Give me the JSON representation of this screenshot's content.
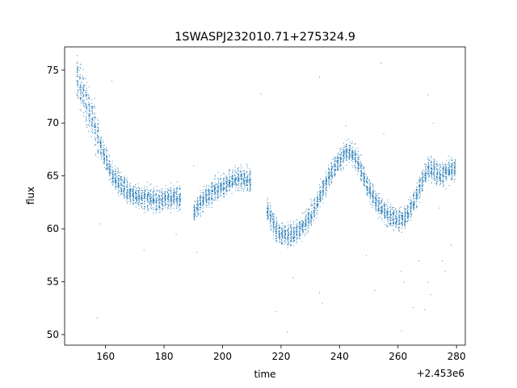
{
  "chart_data": {
    "type": "scatter",
    "title": "1SWASPJ232010.71+275324.9",
    "xlabel": "time",
    "ylabel": "flux",
    "x_offset_label": "+2.453e6",
    "xlim": [
      146,
      283
    ],
    "ylim": [
      49.0,
      77.2
    ],
    "xticks": [
      160,
      180,
      200,
      220,
      240,
      260,
      280
    ],
    "yticks": [
      50,
      55,
      60,
      65,
      70,
      75
    ],
    "grid": false,
    "marker_color": "#1f77b4",
    "series": [
      {
        "trend": [
          [
            150,
            74.3
          ],
          [
            152,
            73.0
          ],
          [
            154,
            71.5
          ],
          [
            156,
            70.0
          ],
          [
            158,
            68.0
          ],
          [
            160,
            66.5
          ],
          [
            162,
            65.2
          ],
          [
            164,
            64.5
          ],
          [
            166,
            64.0
          ],
          [
            168,
            63.5
          ],
          [
            170,
            63.2
          ],
          [
            172,
            63.0
          ],
          [
            174,
            62.9
          ],
          [
            176,
            62.8
          ],
          [
            178,
            62.8
          ],
          [
            180,
            62.8
          ],
          [
            182,
            62.9
          ],
          [
            184,
            63.0
          ],
          [
            186,
            63.0
          ],
          [
            190,
            61.5
          ],
          [
            192,
            62.4
          ],
          [
            194,
            63.0
          ],
          [
            196,
            63.4
          ],
          [
            198,
            63.8
          ],
          [
            200,
            64.1
          ],
          [
            202,
            64.4
          ],
          [
            204,
            64.7
          ],
          [
            206,
            64.8
          ],
          [
            208,
            64.6
          ],
          [
            210,
            64.5
          ],
          [
            216,
            61.5
          ],
          [
            218,
            60.0
          ],
          [
            220,
            59.5
          ],
          [
            222,
            59.4
          ],
          [
            224,
            59.5
          ],
          [
            226,
            60.0
          ],
          [
            228,
            60.5
          ],
          [
            230,
            61.3
          ],
          [
            232,
            62.3
          ],
          [
            234,
            63.5
          ],
          [
            236,
            64.8
          ],
          [
            238,
            65.8
          ],
          [
            240,
            66.5
          ],
          [
            242,
            67.2
          ],
          [
            244,
            67.3
          ],
          [
            246,
            66.5
          ],
          [
            248,
            65.0
          ],
          [
            250,
            63.8
          ],
          [
            252,
            62.8
          ],
          [
            254,
            62.0
          ],
          [
            256,
            61.4
          ],
          [
            258,
            61.1
          ],
          [
            260,
            60.9
          ],
          [
            262,
            61.1
          ],
          [
            264,
            61.8
          ],
          [
            266,
            63.0
          ],
          [
            270,
            65.8
          ],
          [
            272,
            65.6
          ],
          [
            274,
            65.2
          ],
          [
            276,
            65.3
          ],
          [
            278,
            65.6
          ]
        ],
        "outliers": [
          [
            162,
            74.0
          ],
          [
            158,
            60.5
          ],
          [
            157,
            51.6
          ],
          [
            173,
            58.0
          ],
          [
            184,
            59.5
          ],
          [
            190,
            66.0
          ],
          [
            191,
            57.8
          ],
          [
            213,
            72.8
          ],
          [
            218,
            52.2
          ],
          [
            222,
            50.3
          ],
          [
            224,
            55.4
          ],
          [
            233,
            74.4
          ],
          [
            233,
            54.0
          ],
          [
            234,
            53.0
          ],
          [
            242,
            69.8
          ],
          [
            243,
            68.5
          ],
          [
            249,
            57.5
          ],
          [
            252,
            54.2
          ],
          [
            254,
            75.7
          ],
          [
            255,
            69.0
          ],
          [
            261,
            56.0
          ],
          [
            261,
            50.4
          ],
          [
            262,
            55.0
          ],
          [
            265,
            52.6
          ],
          [
            267,
            57.0
          ],
          [
            269,
            52.4
          ],
          [
            270,
            72.7
          ],
          [
            270,
            55.0
          ],
          [
            271,
            53.8
          ],
          [
            272,
            70.0
          ],
          [
            274,
            62.0
          ],
          [
            275,
            57.0
          ],
          [
            276,
            56.0
          ],
          [
            278,
            58.5
          ]
        ],
        "segments": [
          [
            150,
            186
          ],
          [
            190,
            210
          ],
          [
            215,
            280
          ]
        ]
      }
    ]
  }
}
